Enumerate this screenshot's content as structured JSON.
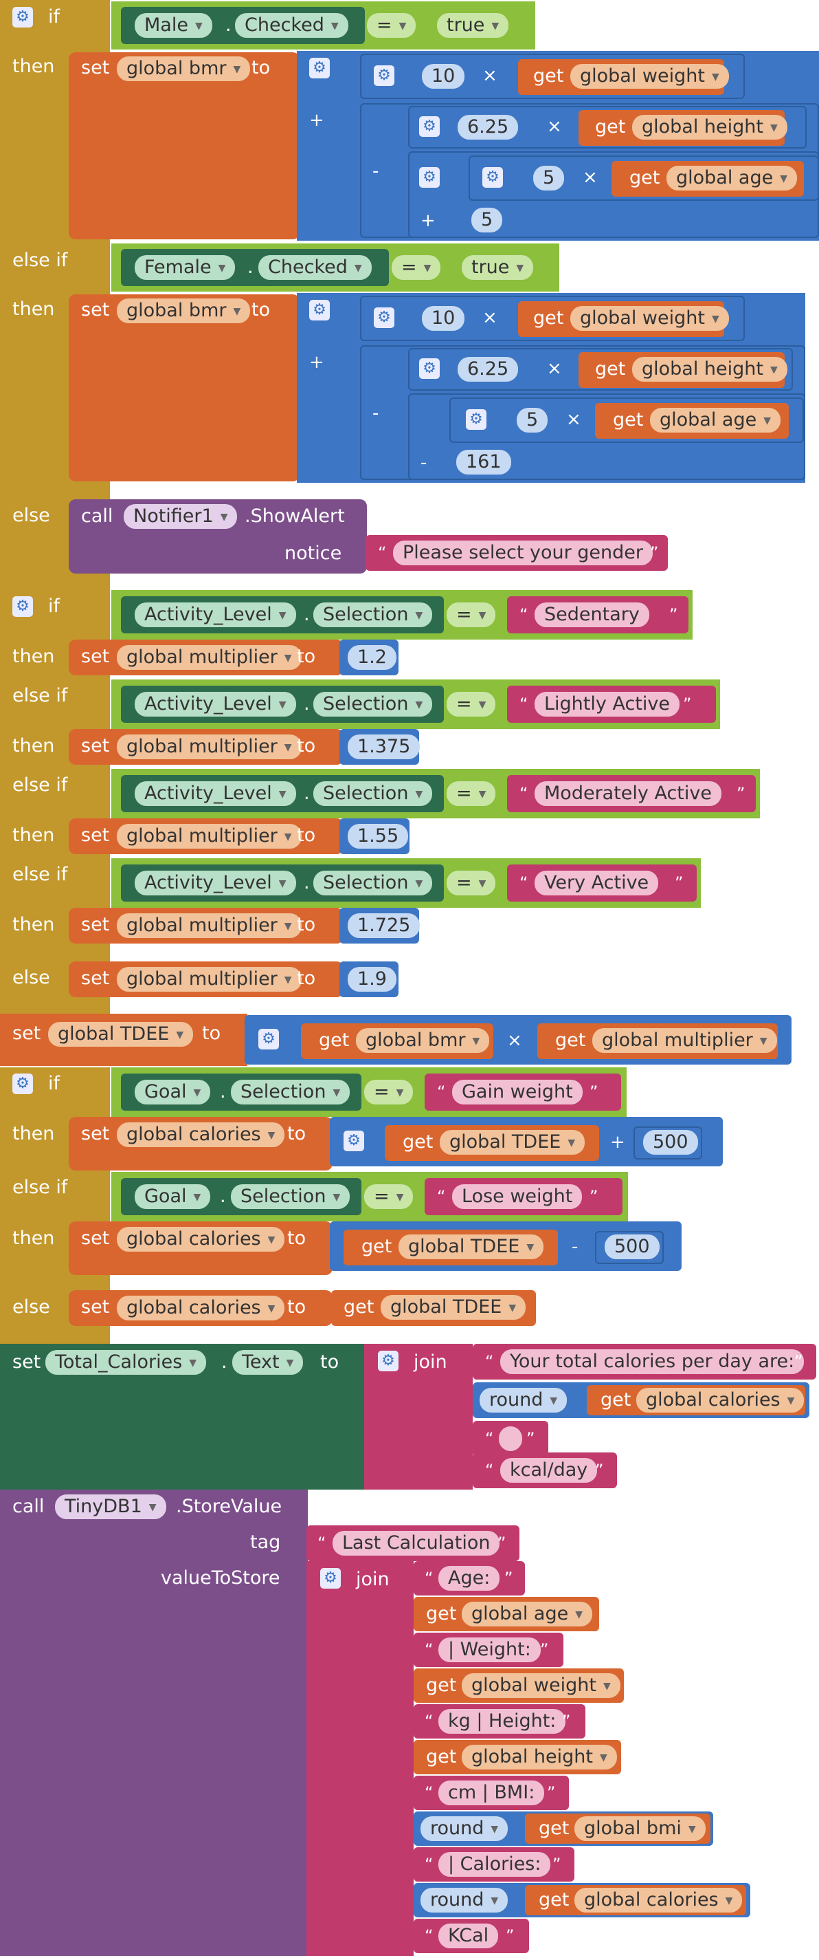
{
  "k": {
    "if": "if",
    "then": "then",
    "elseif": "else if",
    "else": "else",
    "set": "set",
    "to": "to",
    "get": "get",
    "call": "call",
    "join": "join",
    "round": "round",
    "dot": ".",
    "eq": "=",
    "times": "×",
    "plus": "+",
    "minus": "-",
    "oq": "“",
    "cq": "”"
  },
  "c": {
    "male": "Male",
    "female": "Female",
    "checked": "Checked",
    "true": "true",
    "activity": "Activity_Level",
    "selection": "Selection",
    "goal": "Goal",
    "notifier": "Notifier1",
    "showalert": ".ShowAlert",
    "notice": "notice",
    "total": "Total_Calories",
    "text": "Text",
    "tinydb": "TinyDB1",
    "storevalue": ".StoreValue",
    "tag": "tag",
    "value_to_store": "valueToStore"
  },
  "v": {
    "bmr": "global bmr",
    "weight": "global weight",
    "height": "global height",
    "age": "global age",
    "multiplier": "global multiplier",
    "tdee": "global TDEE",
    "calories": "global calories",
    "bmi": "global bmi"
  },
  "n": {
    "n10": "10",
    "n625": "6.25",
    "n5": "5",
    "n161": "161",
    "m12": "1.2",
    "m1375": "1.375",
    "m155": "1.55",
    "m1725": "1.725",
    "m19": "1.9",
    "n500": "500"
  },
  "s": {
    "select_gender": "Please select your gender",
    "sedentary": "Sedentary",
    "lightly": "Lightly Active",
    "moderately": "Moderately Active",
    "very": "Very Active",
    "gain": "Gain weight",
    "lose": "Lose weight",
    "total_prefix": "Your total calories per day are:",
    "blank": "",
    "kcalday": "kcal/day",
    "last_calc": "Last Calculation",
    "age": "Age:",
    "weight": "| Weight:",
    "height": "kg | Height:",
    "bmi": "cm | BMI:",
    "calories": "| Calories:",
    "kcal": "KCal"
  },
  "colors": {
    "control": "#c2972c",
    "logic": "#8bbf3c",
    "variable": "#d9662f",
    "math": "#3d76c4",
    "text": "#c13a6c",
    "procedure": "#7c4f8b",
    "component": "#2d6b4d"
  },
  "icons": {
    "mutator": "gear-icon",
    "dropdown": "chevron-down-icon"
  }
}
